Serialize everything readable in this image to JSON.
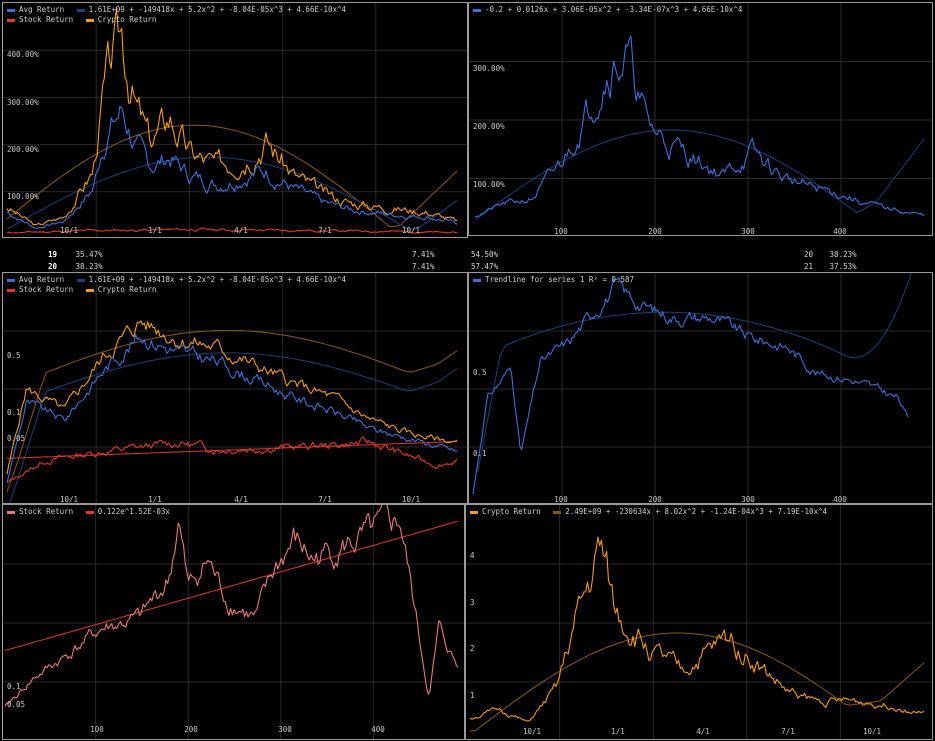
{
  "colors": {
    "avg": "#3f6fd8",
    "avg_trend": "#1f3f7a",
    "stock": "#e03a28",
    "stock_light": "#e87a7a",
    "crypto": "#f39c12",
    "crypto_trend": "#8a5a14",
    "grid": "#2a2a2a"
  },
  "panels": [
    {
      "id": "p1",
      "legend": [
        [
          "Avg Return",
          "avg"
        ],
        [
          "1.61E+09 + -149418x + 5.2x^2 + -8.04E-05x^3 + 4.66E-10x^4",
          "avg_trend"
        ]
      ],
      "legend2": [
        [
          "Stock Return",
          "stock"
        ],
        [
          "Crypto Return",
          "crypto"
        ]
      ],
      "yticks": [
        "400.00%",
        "300.00%",
        "200.00%",
        "100.00%"
      ],
      "xticks": [
        "10/1",
        "1/1",
        "4/1",
        "7/1",
        "10/1"
      ]
    },
    {
      "id": "p2",
      "legend": [
        [
          "-0.2 + 0.0126x + 3.06E-05x^2 + -3.34E-07x^3 + 4.66E-10x^4",
          "avg_trend"
        ]
      ],
      "yticks": [
        "300.00%",
        "200.00%",
        "100.00%"
      ],
      "xticks": [
        "100",
        "200",
        "300",
        "400"
      ]
    },
    {
      "id": "p3",
      "legend": [
        [
          "Avg Return",
          "avg"
        ],
        [
          "1.61E+09 + -149418x + 5.2x^2 + -8.04E-05x^3 + 4.66E-10x^4",
          "avg_trend"
        ]
      ],
      "legend2": [
        [
          "Stock Return",
          "stock"
        ],
        [
          "Crypto Return",
          "crypto"
        ]
      ],
      "yticks": [
        "0.5",
        "0.1",
        "0.05"
      ],
      "xticks": [
        "10/1",
        "1/1",
        "4/1",
        "7/1",
        "10/1"
      ]
    },
    {
      "id": "p4",
      "legend": [
        [
          "Trendline for series 1 R² = 0.587",
          "avg_trend"
        ]
      ],
      "yticks": [
        "0.5",
        "0.1"
      ],
      "xticks": [
        "100",
        "200",
        "300",
        "400"
      ]
    },
    {
      "id": "p5",
      "legend": [
        [
          "Stock Return",
          "stock_light"
        ],
        [
          "0.122e^1.52E-03x",
          "stock"
        ]
      ],
      "yticks": [
        "0.1",
        "0.05"
      ],
      "xticks": [
        "100",
        "200",
        "300",
        "400"
      ]
    },
    {
      "id": "p6",
      "legend": [
        [
          "Crypto Return",
          "crypto"
        ],
        [
          "2.49E+09 + -230634x + 8.02x^2 + -1.24E-04x^3 + 7.19E-10x^4",
          "crypto_trend"
        ]
      ],
      "yticks": [
        "4",
        "3",
        "2",
        "1"
      ],
      "xticks": [
        "10/1",
        "1/1",
        "4/1",
        "7/1",
        "10/1"
      ]
    }
  ],
  "midrow": {
    "left": [
      {
        "n": "19",
        "v": "35.47%",
        "r": "7.41%"
      },
      {
        "n": "20",
        "v": "38.23%",
        "r": "7.41%"
      }
    ],
    "right": [
      {
        "v": "54.50%",
        "n": "20",
        "r": "38.23%"
      },
      {
        "v": "57.47%",
        "n": "21",
        "r": "37.53%"
      }
    ]
  },
  "chart_data": [
    {
      "type": "line",
      "title": "",
      "series": [
        {
          "name": "Avg Return"
        },
        {
          "name": "Stock Return"
        },
        {
          "name": "Crypto Return"
        }
      ],
      "x_ticks": [
        "10/1",
        "1/1",
        "4/1",
        "7/1",
        "10/1"
      ],
      "y_ticks": [
        "100.00%",
        "200.00%",
        "300.00%",
        "400.00%"
      ],
      "crypto_points": [
        [
          0,
          60
        ],
        [
          30,
          20
        ],
        [
          60,
          40
        ],
        [
          90,
          140
        ],
        [
          100,
          300
        ],
        [
          110,
          380
        ],
        [
          120,
          430
        ],
        [
          135,
          280
        ],
        [
          150,
          200
        ],
        [
          170,
          260
        ],
        [
          190,
          180
        ],
        [
          220,
          150
        ],
        [
          250,
          180
        ],
        [
          270,
          210
        ],
        [
          300,
          130
        ],
        [
          330,
          90
        ],
        [
          360,
          70
        ],
        [
          400,
          60
        ],
        [
          440,
          50
        ],
        [
          470,
          30
        ]
      ],
      "avg_points": [
        [
          0,
          50
        ],
        [
          30,
          15
        ],
        [
          60,
          30
        ],
        [
          90,
          100
        ],
        [
          100,
          200
        ],
        [
          110,
          240
        ],
        [
          120,
          270
        ],
        [
          135,
          190
        ],
        [
          150,
          150
        ],
        [
          170,
          170
        ],
        [
          190,
          130
        ],
        [
          220,
          110
        ],
        [
          250,
          130
        ],
        [
          270,
          140
        ],
        [
          300,
          100
        ],
        [
          330,
          70
        ],
        [
          360,
          55
        ],
        [
          400,
          45
        ],
        [
          440,
          40
        ],
        [
          470,
          25
        ]
      ],
      "stock_points": [
        [
          0,
          5
        ],
        [
          100,
          10
        ],
        [
          200,
          12
        ],
        [
          300,
          10
        ],
        [
          400,
          8
        ],
        [
          470,
          5
        ]
      ]
    },
    {
      "type": "line",
      "series": [
        {
          "name": ""
        }
      ],
      "x_ticks": [
        "100",
        "200",
        "300",
        "400"
      ],
      "y_ticks": [
        "100.00%",
        "200.00%",
        "300.00%"
      ],
      "points": [
        [
          0,
          20
        ],
        [
          30,
          40
        ],
        [
          60,
          50
        ],
        [
          90,
          110
        ],
        [
          120,
          210
        ],
        [
          140,
          290
        ],
        [
          160,
          300
        ],
        [
          180,
          180
        ],
        [
          200,
          150
        ],
        [
          230,
          120
        ],
        [
          260,
          90
        ],
        [
          290,
          130
        ],
        [
          320,
          90
        ],
        [
          350,
          70
        ],
        [
          380,
          60
        ],
        [
          410,
          40
        ],
        [
          440,
          30
        ],
        [
          470,
          20
        ]
      ]
    },
    {
      "type": "line",
      "series": [
        {
          "name": "Avg Return"
        },
        {
          "name": "Stock Return"
        },
        {
          "name": "Crypto Return"
        }
      ],
      "x_ticks": [
        "10/1",
        "1/1",
        "4/1",
        "7/1",
        "10/1"
      ],
      "y_ticks": [
        "0.05",
        "0.1",
        "0.5"
      ]
    },
    {
      "type": "line",
      "series": [
        {
          "name": ""
        }
      ],
      "x_ticks": [
        "100",
        "200",
        "300",
        "400"
      ],
      "y_ticks": [
        "0.1",
        "0.5"
      ]
    },
    {
      "type": "line",
      "series": [
        {
          "name": "Stock Return"
        }
      ],
      "x_ticks": [
        "100",
        "200",
        "300",
        "400"
      ],
      "y_ticks": [
        "0.05",
        "0.1"
      ]
    },
    {
      "type": "line",
      "series": [
        {
          "name": "Crypto Return"
        }
      ],
      "x_ticks": [
        "10/1",
        "1/1",
        "4/1",
        "7/1",
        "10/1"
      ],
      "y_ticks": [
        "1",
        "2",
        "3",
        "4"
      ],
      "points": [
        [
          0,
          0.3
        ],
        [
          30,
          0.5
        ],
        [
          60,
          0.2
        ],
        [
          90,
          1.0
        ],
        [
          110,
          2.6
        ],
        [
          125,
          3.5
        ],
        [
          135,
          4.3
        ],
        [
          150,
          2.8
        ],
        [
          170,
          2.3
        ],
        [
          190,
          1.8
        ],
        [
          220,
          1.4
        ],
        [
          250,
          1.9
        ],
        [
          270,
          2.2
        ],
        [
          300,
          1.5
        ],
        [
          330,
          0.9
        ],
        [
          360,
          0.7
        ],
        [
          400,
          0.7
        ],
        [
          440,
          0.6
        ],
        [
          470,
          0.4
        ]
      ]
    }
  ]
}
